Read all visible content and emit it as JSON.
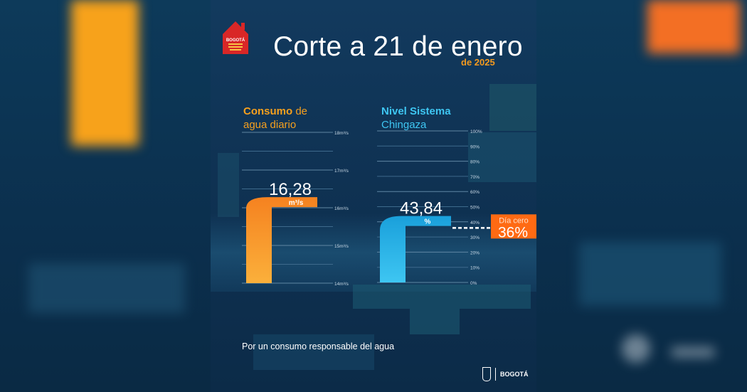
{
  "title": "Corte a 21 de enero",
  "subtitle": "de 2025",
  "badge_text": "BOGOTÁ",
  "footer": "Por un consumo responsable del agua",
  "logo_text": "BOGOTÁ",
  "colors": {
    "orange": "#f58220",
    "orange_light": "#fbb03b",
    "blue": "#3ec6f2",
    "blue_dark": "#1aa0db",
    "day_zero": "#ff6a13"
  },
  "chart_data": [
    {
      "type": "bar",
      "title_bold": "Consumo",
      "title_rest": " de",
      "title_line2": "agua diario",
      "yticks": [
        "18m³/s",
        "17m³/s",
        "16m³/s",
        "15m³/s",
        "14m³/s"
      ],
      "ytick_values": [
        18,
        17,
        16,
        15,
        14
      ],
      "ylim": [
        14,
        18
      ],
      "value": 16.28,
      "value_label": "16,28",
      "unit_label": "m³/s"
    },
    {
      "type": "bar",
      "title_bold": "Nivel Sistema",
      "title_line2": "Chingaza",
      "yticks": [
        "100%",
        "90%",
        "80%",
        "70%",
        "60%",
        "50%",
        "40%",
        "30%",
        "20%",
        "10%",
        "0%"
      ],
      "ytick_values": [
        100,
        90,
        80,
        70,
        60,
        50,
        40,
        30,
        20,
        10,
        0
      ],
      "ylim": [
        0,
        100
      ],
      "value": 43.84,
      "value_label": "43,84",
      "unit_label": "%",
      "threshold": {
        "value": 36,
        "label_top": "Día cero",
        "label_value": "36%"
      }
    }
  ]
}
